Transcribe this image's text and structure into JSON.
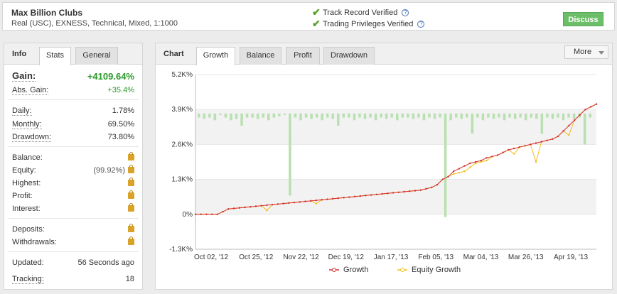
{
  "account": {
    "name": "Max Billion Clubs",
    "details": "Real (USC), EXNESS, Technical, Mixed, 1:1000"
  },
  "verification": {
    "track_record": "Track Record Verified",
    "trading_privileges": "Trading Privileges Verified"
  },
  "discuss_label": "Discuss",
  "left_panel": {
    "title": "Info",
    "tabs": [
      "Stats",
      "General"
    ],
    "gain_label": "Gain:",
    "gain_value": "+4109.64%",
    "abs_gain_label": "Abs. Gain:",
    "abs_gain_value": "+35.4%",
    "daily_label": "Daily:",
    "daily_value": "1.78%",
    "monthly_label": "Monthly:",
    "monthly_value": "69.50%",
    "drawdown_label": "Drawdown:",
    "drawdown_value": "73.80%",
    "balance_label": "Balance:",
    "equity_label": "Equity:",
    "equity_value": "(99.92%)",
    "highest_label": "Highest:",
    "profit_label": "Profit:",
    "interest_label": "Interest:",
    "deposits_label": "Deposits:",
    "withdrawals_label": "Withdrawals:",
    "updated_label": "Updated:",
    "updated_value": "56 Seconds ago",
    "tracking_label": "Tracking:",
    "tracking_value": "18"
  },
  "chart_panel": {
    "title": "Chart",
    "tabs": [
      "Growth",
      "Balance",
      "Profit",
      "Drawdown"
    ],
    "more_label": "More"
  },
  "colors": {
    "gain_green": "#2a9a2a",
    "growth_line": "#d43030",
    "equity_line": "#f0c020",
    "bar_fill": "#b8e0b0",
    "discuss_bg": "#6cbf68"
  },
  "chart_data": {
    "type": "line",
    "yticks": [
      "5.2K%",
      "3.9K%",
      "2.6K%",
      "1.3K%",
      "0%",
      "-1.3K%"
    ],
    "ylim": [
      -1300,
      5200
    ],
    "xticks": [
      "Oct 02, '12",
      "Oct 25, '12",
      "Nov 22, '12",
      "Dec 19, '12",
      "Jan 17, '13",
      "Feb 05, '13",
      "Mar 04, '13",
      "Mar 26, '13",
      "Apr 19, '13"
    ],
    "legend": [
      "Growth",
      "Equity Growth"
    ],
    "series": [
      {
        "name": "Growth",
        "values": [
          0,
          0,
          0,
          0,
          0,
          100,
          200,
          220,
          240,
          260,
          280,
          300,
          320,
          340,
          360,
          380,
          400,
          420,
          440,
          460,
          480,
          500,
          520,
          540,
          560,
          580,
          600,
          620,
          640,
          660,
          680,
          700,
          720,
          740,
          760,
          780,
          800,
          820,
          840,
          860,
          880,
          900,
          950,
          1000,
          1100,
          1300,
          1400,
          1600,
          1700,
          1800,
          1900,
          1950,
          2000,
          2100,
          2150,
          2200,
          2300,
          2400,
          2450,
          2500,
          2550,
          2600,
          2650,
          2700,
          2750,
          2800,
          2900,
          3100,
          3300,
          3500,
          3700,
          3900,
          4000,
          4100
        ]
      },
      {
        "name": "Equity Growth",
        "values": [
          0,
          0,
          0,
          0,
          0,
          100,
          200,
          220,
          240,
          260,
          280,
          300,
          320,
          150,
          360,
          380,
          400,
          420,
          440,
          460,
          480,
          500,
          400,
          540,
          560,
          580,
          600,
          620,
          640,
          660,
          680,
          700,
          720,
          740,
          760,
          780,
          800,
          820,
          840,
          860,
          880,
          900,
          950,
          1000,
          1100,
          1300,
          1400,
          1500,
          1550,
          1600,
          1750,
          1900,
          1950,
          2000,
          2150,
          2200,
          2300,
          2400,
          2250,
          2500,
          2550,
          2600,
          1950,
          2700,
          2750,
          2800,
          2900,
          3100,
          2950,
          3500,
          3700,
          3900,
          4000,
          4100
        ]
      }
    ],
    "bars": [
      3600,
      3550,
      3600,
      3500,
      3700,
      3600,
      3500,
      3550,
      3300,
      3600,
      3600,
      3550,
      3600,
      3500,
      3600,
      3650,
      3700,
      700,
      3600,
      3500,
      3600,
      3550,
      3600,
      3500,
      3600,
      3550,
      3300,
      3600,
      3600,
      3500,
      3600,
      3550,
      3600,
      3500,
      3600,
      3550,
      3600,
      3500,
      3600,
      3600,
      3550,
      3600,
      3500,
      3600,
      3550,
      3600,
      -100,
      3500,
      3600,
      3550,
      3600,
      3000,
      3600,
      3500,
      3600,
      3550,
      3600,
      3500,
      3600,
      3550,
      3600,
      3500,
      3600,
      3550,
      3000,
      3600,
      3550,
      3600,
      3500,
      3600,
      3550,
      3600,
      2600,
      3600
    ]
  }
}
